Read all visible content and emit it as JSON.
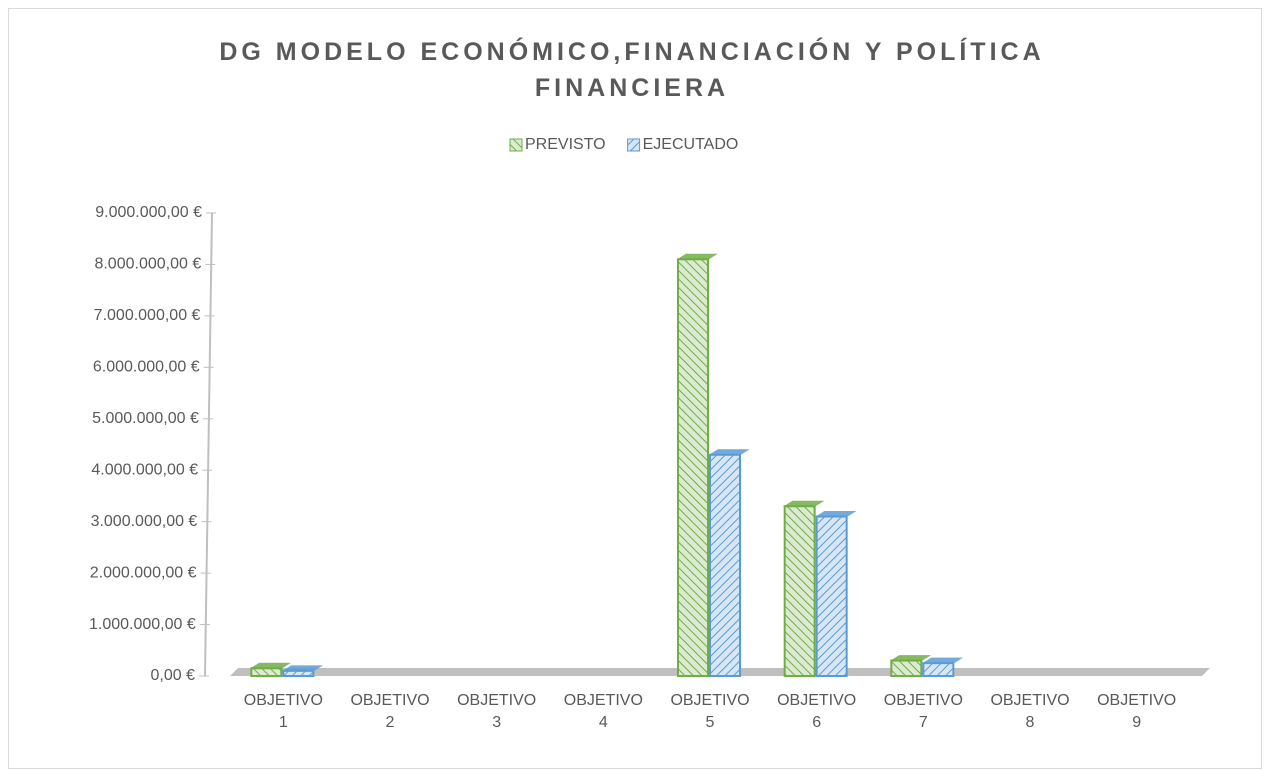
{
  "chart_data": {
    "type": "bar3d",
    "title": "DG MODELO ECONÓMICO,FINANCIACIÓN Y POLÍTICA FINANCIERA",
    "categories": [
      "OBJETIVO 1",
      "OBJETIVO 2",
      "OBJETIVO 3",
      "OBJETIVO 4",
      "OBJETIVO 5",
      "OBJETIVO 6",
      "OBJETIVO 7",
      "OBJETIVO 8",
      "OBJETIVO 9"
    ],
    "series": [
      {
        "name": "PREVISTO",
        "color": "#70ad47",
        "values": [
          150000,
          0,
          0,
          0,
          8100000,
          3300000,
          300000,
          0,
          0
        ]
      },
      {
        "name": "EJECUTADO",
        "color": "#5b9bd5",
        "values": [
          100000,
          0,
          0,
          0,
          4300000,
          3100000,
          250000,
          0,
          0
        ]
      }
    ],
    "ylim": [
      0,
      9000000
    ],
    "yticks": [
      {
        "value": 0,
        "label": "0,00 €"
      },
      {
        "value": 1000000,
        "label": "1.000.000,00 €"
      },
      {
        "value": 2000000,
        "label": "2.000.000,00 €"
      },
      {
        "value": 3000000,
        "label": "3.000.000,00 €"
      },
      {
        "value": 4000000,
        "label": "4.000.000,00 €"
      },
      {
        "value": 5000000,
        "label": "5.000.000,00 €"
      },
      {
        "value": 6000000,
        "label": "6.000.000,00 €"
      },
      {
        "value": 7000000,
        "label": "7.000.000,00 €"
      },
      {
        "value": 8000000,
        "label": "8.000.000,00 €"
      },
      {
        "value": 9000000,
        "label": "9.000.000,00 €"
      }
    ],
    "legend": "top"
  }
}
